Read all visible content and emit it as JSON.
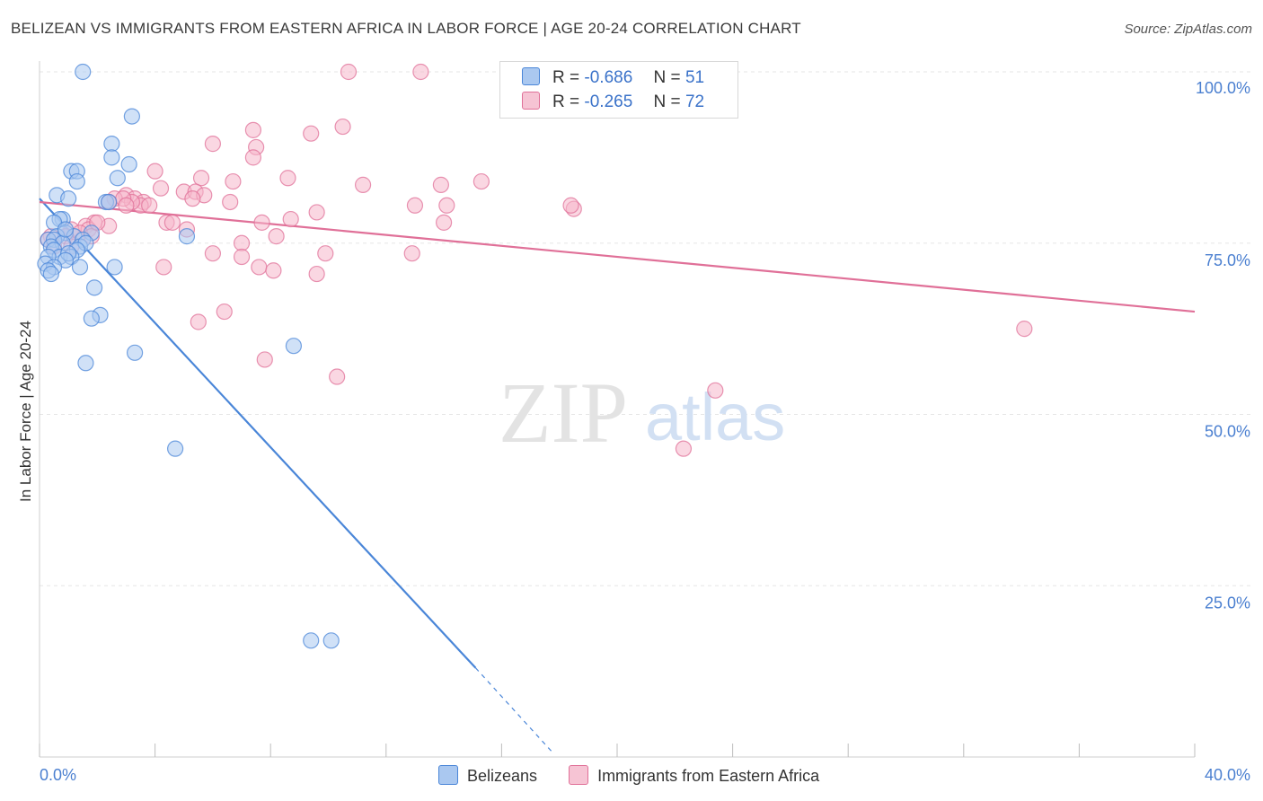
{
  "title": "BELIZEAN VS IMMIGRANTS FROM EASTERN AFRICA IN LABOR FORCE | AGE 20-24 CORRELATION CHART",
  "source": "Source: ZipAtlas.com",
  "watermark": {
    "zip": "ZIP",
    "atlas": "atlas"
  },
  "legend": {
    "rows": [
      {
        "r_label": "R =",
        "r_value": "-0.686",
        "n_label": "N =",
        "n_value": "51"
      },
      {
        "r_label": "R =",
        "r_value": "-0.265",
        "n_label": "N =",
        "n_value": "72"
      }
    ]
  },
  "chart_data": {
    "type": "scatter",
    "title": "BELIZEAN VS IMMIGRANTS FROM EASTERN AFRICA IN LABOR FORCE | AGE 20-24 CORRELATION CHART",
    "xlabel": "",
    "ylabel": "In Labor Force | Age 20-24",
    "xlim": [
      0,
      40
    ],
    "ylim": [
      0,
      102
    ],
    "x_tick_labels": [
      "0.0%",
      "40.0%"
    ],
    "y_ticks": [
      25,
      50,
      75,
      100
    ],
    "y_tick_labels": [
      "25.0%",
      "50.0%",
      "75.0%",
      "100.0%"
    ],
    "grid": true,
    "legend_position": "bottom",
    "series": [
      {
        "name": "Belizeans",
        "color": "#4a86d8",
        "fill": "#aac8f0",
        "points": [
          [
            1.5,
            100
          ],
          [
            3.2,
            93.5
          ],
          [
            2.5,
            89.5
          ],
          [
            3.1,
            86.5
          ],
          [
            1.1,
            85.5
          ],
          [
            1.3,
            85.5
          ],
          [
            2.7,
            84.5
          ],
          [
            1.3,
            84
          ],
          [
            2.5,
            87.5
          ],
          [
            0.6,
            82
          ],
          [
            1,
            81.5
          ],
          [
            2.3,
            81
          ],
          [
            2.4,
            81
          ],
          [
            0.8,
            78.5
          ],
          [
            0.7,
            78.5
          ],
          [
            0.5,
            78
          ],
          [
            1.8,
            76.5
          ],
          [
            0.9,
            76.5
          ],
          [
            0.6,
            76
          ],
          [
            1.2,
            76
          ],
          [
            0.3,
            75.5
          ],
          [
            0.5,
            75.5
          ],
          [
            1.5,
            75.5
          ],
          [
            0.8,
            75
          ],
          [
            1.4,
            74.5
          ],
          [
            1.6,
            75
          ],
          [
            0.4,
            74.5
          ],
          [
            0.5,
            74
          ],
          [
            1.3,
            74
          ],
          [
            0.7,
            73
          ],
          [
            1.1,
            73
          ],
          [
            1,
            73.5
          ],
          [
            0.3,
            73
          ],
          [
            0.9,
            72.5
          ],
          [
            0.2,
            72
          ],
          [
            0.5,
            71.5
          ],
          [
            1.4,
            71.5
          ],
          [
            2.6,
            71.5
          ],
          [
            0.3,
            71
          ],
          [
            0.4,
            70.5
          ],
          [
            1.9,
            68.5
          ],
          [
            2.1,
            64.5
          ],
          [
            1.8,
            64
          ],
          [
            5.1,
            76
          ],
          [
            3.3,
            59
          ],
          [
            1.6,
            57.5
          ],
          [
            8.8,
            60
          ],
          [
            4.7,
            45
          ],
          [
            9.4,
            17
          ],
          [
            10.1,
            17
          ],
          [
            0.9,
            77
          ]
        ],
        "trendline": {
          "x": [
            0,
            15.1
          ],
          "y": [
            81.5,
            13
          ]
        },
        "trendline_dashed": {
          "x": [
            15.1,
            17.8
          ],
          "y": [
            13,
            0.5
          ]
        }
      },
      {
        "name": "Immigrants from Eastern Africa",
        "color": "#e07098",
        "fill": "#f6b6ca",
        "points": [
          [
            10.7,
            100
          ],
          [
            13.2,
            100
          ],
          [
            7.4,
            91.5
          ],
          [
            9.4,
            91
          ],
          [
            10.5,
            92
          ],
          [
            6,
            89.5
          ],
          [
            7.5,
            89
          ],
          [
            7.4,
            87.5
          ],
          [
            4,
            85.5
          ],
          [
            5.6,
            84.5
          ],
          [
            8.6,
            84.5
          ],
          [
            6.7,
            84
          ],
          [
            11.2,
            83.5
          ],
          [
            13.9,
            83.5
          ],
          [
            15.3,
            84
          ],
          [
            4.2,
            83
          ],
          [
            5,
            82.5
          ],
          [
            5.4,
            82.5
          ],
          [
            5.7,
            82
          ],
          [
            3,
            82
          ],
          [
            3.3,
            81.5
          ],
          [
            5.3,
            81.5
          ],
          [
            2.6,
            81.5
          ],
          [
            2.4,
            81
          ],
          [
            3.6,
            81
          ],
          [
            3.5,
            80.5
          ],
          [
            3.2,
            81
          ],
          [
            3.8,
            80.5
          ],
          [
            6.6,
            81
          ],
          [
            13,
            80.5
          ],
          [
            14.1,
            80.5
          ],
          [
            18.5,
            80
          ],
          [
            18.4,
            80.5
          ],
          [
            9.6,
            79.5
          ],
          [
            4.4,
            78
          ],
          [
            4.6,
            78
          ],
          [
            7.7,
            78
          ],
          [
            8.7,
            78.5
          ],
          [
            14,
            78
          ],
          [
            1.9,
            78
          ],
          [
            2.4,
            77.5
          ],
          [
            1.6,
            77.5
          ],
          [
            1.7,
            77
          ],
          [
            1.1,
            77
          ],
          [
            5.1,
            77
          ],
          [
            1.4,
            76.5
          ],
          [
            1.8,
            76
          ],
          [
            0.4,
            76
          ],
          [
            0.9,
            76
          ],
          [
            0.3,
            75.5
          ],
          [
            8.2,
            76
          ],
          [
            7,
            75
          ],
          [
            0.5,
            74.5
          ],
          [
            1.1,
            74.5
          ],
          [
            6,
            73.5
          ],
          [
            9.9,
            73.5
          ],
          [
            12.9,
            73.5
          ],
          [
            7,
            73
          ],
          [
            4.3,
            71.5
          ],
          [
            7.6,
            71.5
          ],
          [
            8.1,
            71
          ],
          [
            9.6,
            70.5
          ],
          [
            5.5,
            63.5
          ],
          [
            6.4,
            65
          ],
          [
            7.8,
            58
          ],
          [
            10.3,
            55.5
          ],
          [
            34.1,
            62.5
          ],
          [
            23.4,
            53.5
          ],
          [
            22.3,
            45
          ],
          [
            2,
            78
          ],
          [
            2.9,
            81.5
          ],
          [
            3,
            80.5
          ]
        ],
        "trendline": {
          "x": [
            0,
            40
          ],
          "y": [
            81,
            65
          ]
        }
      }
    ]
  }
}
